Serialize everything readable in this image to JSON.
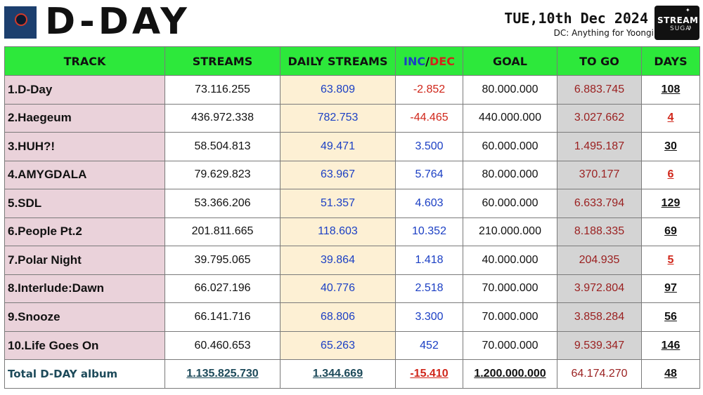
{
  "header": {
    "title": "D-DAY",
    "date": "TUE,10th Dec 2024",
    "credit": "DC: Anything for Yoongi",
    "logo_line1": "STREAM",
    "logo_line2": "SUGA"
  },
  "colors": {
    "header_bg": "#2de83b",
    "track_bg": "#ead2da",
    "daily_bg": "#fdf0d4",
    "togo_bg": "#d4d4d4",
    "positive": "#1b3fc4",
    "negative": "#d0261a"
  },
  "columns": {
    "track": "TRACK",
    "streams": "STREAMS",
    "daily": "DAILY STREAMS",
    "inc": "INC",
    "slash": "/",
    "dec": "DEC",
    "goal": "GOAL",
    "togo": "TO GO",
    "days": "DAYS"
  },
  "rows": [
    {
      "track": "1.D-Day",
      "streams": "73.116.255",
      "daily": "63.809",
      "inc": "-2.852",
      "goal": "80.000.000",
      "togo": "6.883.745",
      "days": "108"
    },
    {
      "track": "2.Haegeum",
      "streams": "436.972.338",
      "daily": "782.753",
      "inc": "-44.465",
      "goal": "440.000.000",
      "togo": "3.027.662",
      "days": "4"
    },
    {
      "track": "3.HUH?!",
      "streams": "58.504.813",
      "daily": "49.471",
      "inc": "3.500",
      "goal": "60.000.000",
      "togo": "1.495.187",
      "days": "30"
    },
    {
      "track": "4.AMYGDALA",
      "streams": "79.629.823",
      "daily": "63.967",
      "inc": "5.764",
      "goal": "80.000.000",
      "togo": "370.177",
      "days": "6"
    },
    {
      "track": "5.SDL",
      "streams": "53.366.206",
      "daily": "51.357",
      "inc": "4.603",
      "goal": "60.000.000",
      "togo": "6.633.794",
      "days": "129"
    },
    {
      "track": "6.People Pt.2",
      "streams": "201.811.665",
      "daily": "118.603",
      "inc": "10.352",
      "goal": "210.000.000",
      "togo": "8.188.335",
      "days": "69"
    },
    {
      "track": "7.Polar Night",
      "streams": "39.795.065",
      "daily": "39.864",
      "inc": "1.418",
      "goal": "40.000.000",
      "togo": "204.935",
      "days": "5"
    },
    {
      "track": "8.Interlude:Dawn",
      "streams": "66.027.196",
      "daily": "40.776",
      "inc": "2.518",
      "goal": "70.000.000",
      "togo": "3.972.804",
      "days": "97"
    },
    {
      "track": "9.Snooze",
      "streams": "66.141.716",
      "daily": "68.806",
      "inc": "3.300",
      "goal": "70.000.000",
      "togo": "3.858.284",
      "days": "56"
    },
    {
      "track": "10.Life Goes On",
      "streams": "60.460.653",
      "daily": "65.263",
      "inc": "452",
      "goal": "70.000.000",
      "togo": "9.539.347",
      "days": "146"
    }
  ],
  "total": {
    "label": "Total D-DAY album",
    "streams": "1.135.825.730",
    "daily": "1.344.669",
    "inc": "-15.410",
    "goal": "1.200.000.000",
    "togo": "64.174.270",
    "days": "48"
  }
}
